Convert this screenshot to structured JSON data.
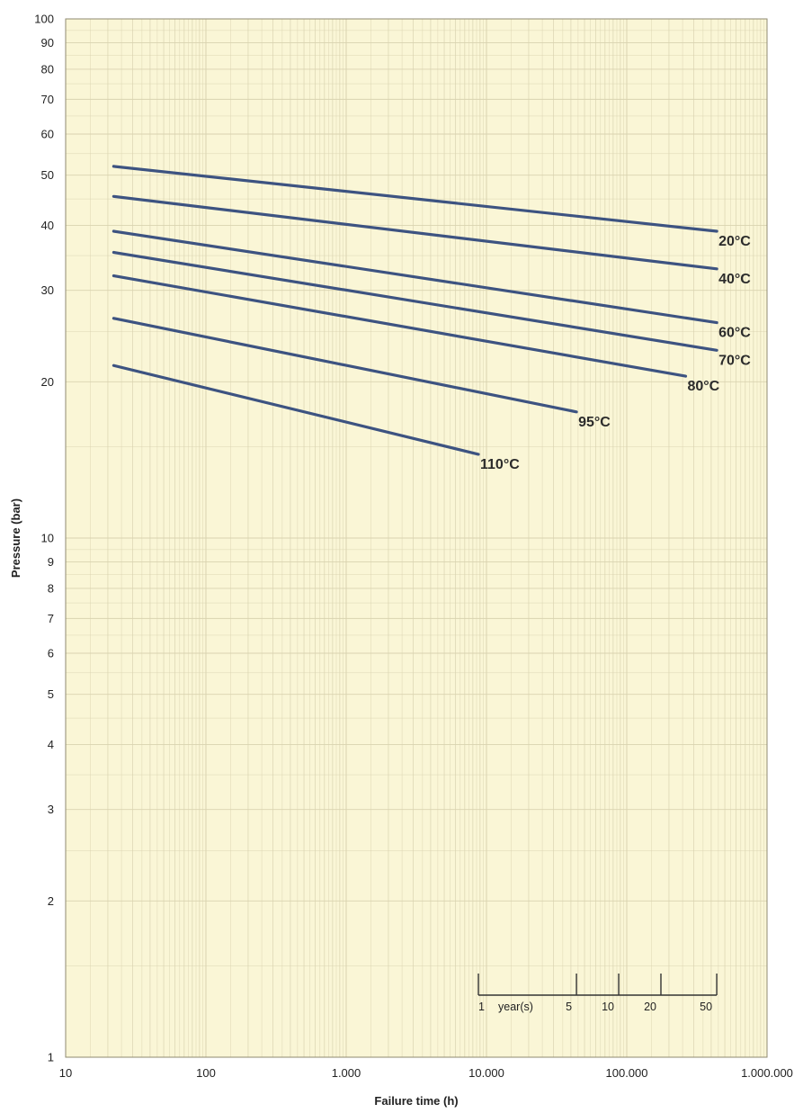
{
  "chart_data": {
    "type": "line",
    "title": "",
    "xlabel": "Failure time (h)",
    "ylabel": "Pressure (bar)",
    "x_scale": "log",
    "y_scale": "log",
    "xlim": [
      10,
      1000000
    ],
    "ylim": [
      1,
      100
    ],
    "grid": true,
    "background_color": "#faf6d6",
    "grid_color": "#d9d3b0",
    "line_color": "#3d5381",
    "x_ticks": [
      {
        "value": 10,
        "label": "10"
      },
      {
        "value": 100,
        "label": "100"
      },
      {
        "value": 1000,
        "label": "1.000"
      },
      {
        "value": 10000,
        "label": "10.000"
      },
      {
        "value": 100000,
        "label": "100.000"
      },
      {
        "value": 1000000,
        "label": "1.000.000"
      }
    ],
    "y_ticks": [
      {
        "value": 1,
        "label": "1"
      },
      {
        "value": 2,
        "label": "2"
      },
      {
        "value": 3,
        "label": "3"
      },
      {
        "value": 4,
        "label": "4"
      },
      {
        "value": 5,
        "label": "5"
      },
      {
        "value": 6,
        "label": "6"
      },
      {
        "value": 7,
        "label": "7"
      },
      {
        "value": 8,
        "label": "8"
      },
      {
        "value": 9,
        "label": "9"
      },
      {
        "value": 10,
        "label": "10"
      },
      {
        "value": 20,
        "label": "20"
      },
      {
        "value": 30,
        "label": "30"
      },
      {
        "value": 40,
        "label": "40"
      },
      {
        "value": 50,
        "label": "50"
      },
      {
        "value": 60,
        "label": "60"
      },
      {
        "value": 70,
        "label": "70"
      },
      {
        "value": 80,
        "label": "80"
      },
      {
        "value": 90,
        "label": "90"
      },
      {
        "value": 100,
        "label": "100"
      }
    ],
    "series": [
      {
        "name": "20°C",
        "x": [
          22,
          438000
        ],
        "y": [
          52,
          39
        ]
      },
      {
        "name": "40°C",
        "x": [
          22,
          438000
        ],
        "y": [
          45.5,
          33
        ]
      },
      {
        "name": "60°C",
        "x": [
          22,
          438000
        ],
        "y": [
          39,
          26
        ]
      },
      {
        "name": "70°C",
        "x": [
          22,
          438000
        ],
        "y": [
          35.5,
          23
        ]
      },
      {
        "name": "80°C",
        "x": [
          22,
          262800
        ],
        "y": [
          32,
          20.5
        ]
      },
      {
        "name": "95°C",
        "x": [
          22,
          43800
        ],
        "y": [
          26.5,
          17.5
        ]
      },
      {
        "name": "110°C",
        "x": [
          22,
          8760
        ],
        "y": [
          21.5,
          14.5
        ]
      }
    ],
    "years_scale": {
      "unit_label": "year(s)",
      "ticks": [
        {
          "years": 1,
          "label": "1"
        },
        {
          "years": 5,
          "label": "5"
        },
        {
          "years": 10,
          "label": "10"
        },
        {
          "years": 20,
          "label": "20"
        },
        {
          "years": 50,
          "label": "50"
        }
      ]
    }
  }
}
